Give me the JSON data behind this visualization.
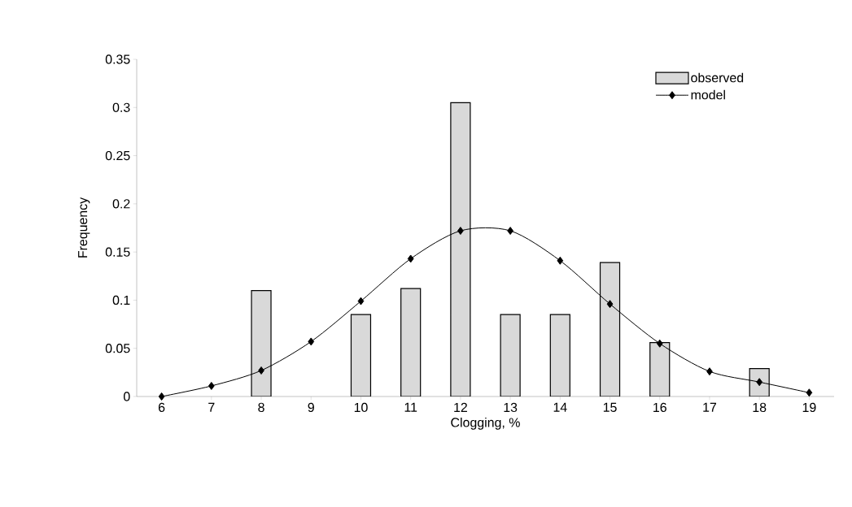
{
  "chart_data": {
    "type": "bar",
    "xlabel": "Clogging, %",
    "ylabel": "Frequency",
    "categories": [
      "6",
      "7",
      "8",
      "9",
      "10",
      "11",
      "12",
      "13",
      "14",
      "15",
      "16",
      "17",
      "18",
      "19"
    ],
    "series": [
      {
        "name": "observed",
        "color": "#d9d9d9",
        "values": [
          null,
          null,
          0.11,
          null,
          0.085,
          0.112,
          0.305,
          0.085,
          0.085,
          0.139,
          0.056,
          null,
          0.029,
          null
        ]
      },
      {
        "name": "model",
        "type": "line",
        "color": "#000000",
        "values": [
          0,
          0.011,
          0.027,
          0.057,
          0.099,
          0.143,
          0.172,
          0.172,
          0.141,
          0.096,
          0.055,
          0.026,
          0.015,
          0.004
        ]
      }
    ],
    "ylim": [
      0,
      0.35
    ],
    "yticks": [
      0,
      0.05,
      0.1,
      0.15,
      0.2,
      0.25,
      0.3,
      0.35
    ],
    "grid": false,
    "legend": "top right",
    "marker": "diamond",
    "line_style": "solid"
  }
}
